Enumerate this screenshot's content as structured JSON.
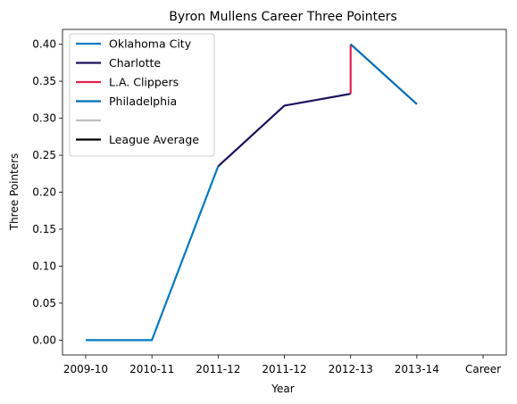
{
  "chart_data": {
    "type": "line",
    "title": "Byron Mullens Career Three Pointers",
    "xlabel": "Year",
    "ylabel": "Three Pointers",
    "xlim": [
      -0.35,
      6.35
    ],
    "ylim": [
      -0.02,
      0.42
    ],
    "x_ticks": [
      {
        "pos": 0,
        "label": "2009-10"
      },
      {
        "pos": 1,
        "label": "2010-11"
      },
      {
        "pos": 2,
        "label": "2011-12"
      },
      {
        "pos": 3,
        "label": "2011-12"
      },
      {
        "pos": 4,
        "label": "2012-13"
      },
      {
        "pos": 5,
        "label": "2013-14"
      },
      {
        "pos": 6,
        "label": "Career"
      }
    ],
    "y_ticks": [
      "0.00",
      "0.05",
      "0.10",
      "0.15",
      "0.20",
      "0.25",
      "0.30",
      "0.35",
      "0.40"
    ],
    "legend_position": "upper-left",
    "grid": false,
    "series": [
      {
        "name": "Oklahoma City",
        "color": "#007AC1",
        "points": [
          [
            0,
            0.0
          ],
          [
            1,
            0.0
          ],
          [
            2,
            0.235
          ]
        ]
      },
      {
        "name": "Charlotte",
        "color": "#1D1160",
        "points": [
          [
            2,
            0.235
          ],
          [
            3,
            0.317
          ],
          [
            4,
            0.333
          ]
        ]
      },
      {
        "name": "L.A. Clippers",
        "color": "#E0234E",
        "points": [
          [
            4,
            0.333
          ],
          [
            4,
            0.4
          ]
        ]
      },
      {
        "name": "Philadelphia",
        "color": "#006BB6",
        "points": [
          [
            4,
            0.4
          ],
          [
            5,
            0.319
          ]
        ]
      },
      {
        "name": "",
        "color": "#BEBEBE",
        "points": []
      },
      {
        "name": "League Average",
        "color": "#000000",
        "points": []
      }
    ]
  }
}
